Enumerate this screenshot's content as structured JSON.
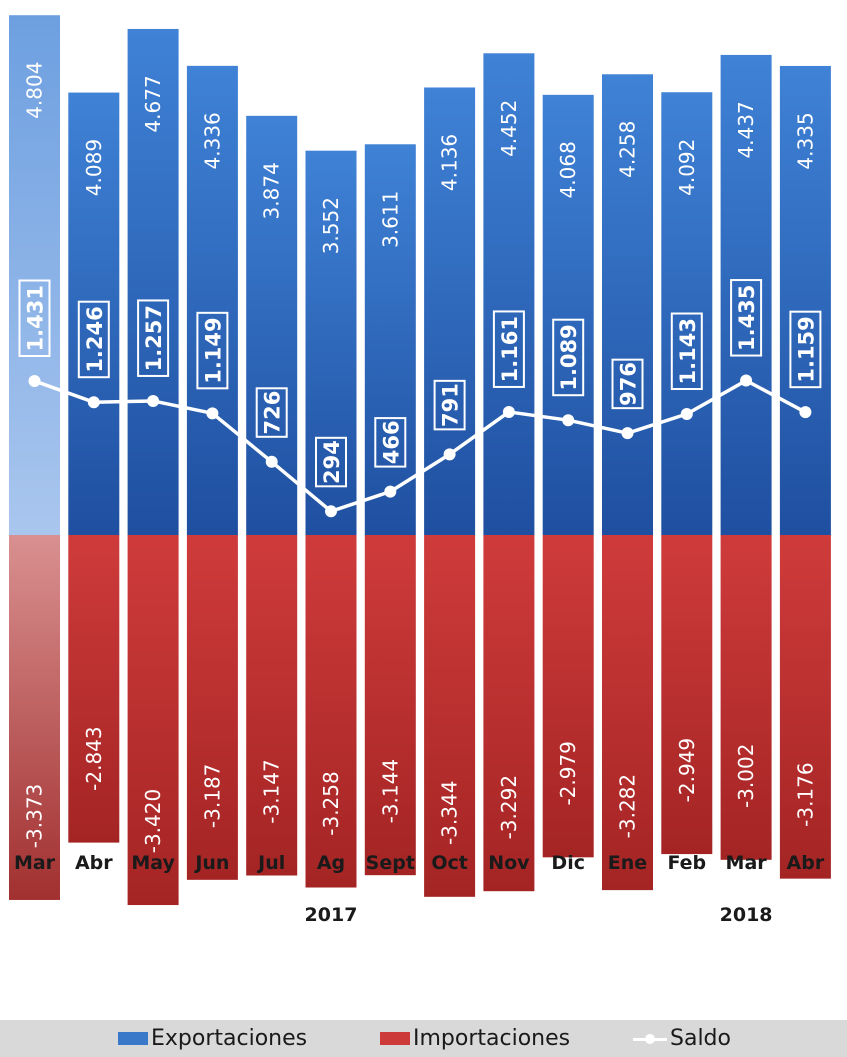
{
  "chart_data": {
    "type": "bar",
    "categories": [
      "Mar",
      "Abr",
      "May",
      "Jun",
      "Jul",
      "Ag",
      "Sept",
      "Oct",
      "Nov",
      "Dic",
      "Ene",
      "Feb",
      "Mar",
      "Abr"
    ],
    "year_labels": [
      {
        "label": "2017",
        "category_index": 5
      },
      {
        "label": "2018",
        "category_index": 12
      }
    ],
    "series": [
      {
        "name": "Exportaciones",
        "type": "bar",
        "color": "#3a78c9",
        "values": [
          4.804,
          4.089,
          4.677,
          4.336,
          3.874,
          3.552,
          3.611,
          4.136,
          4.452,
          4.068,
          4.258,
          4.092,
          4.437,
          4.335
        ],
        "labels": [
          "4.804",
          "4.089",
          "4.677",
          "4.336",
          "3.874",
          "3.552",
          "3.611",
          "4.136",
          "4.452",
          "4.068",
          "4.258",
          "4.092",
          "4.437",
          "4.335"
        ]
      },
      {
        "name": "Importaciones",
        "type": "bar",
        "color": "#cc3a3a",
        "values": [
          -3.373,
          -2.843,
          -3.42,
          -3.187,
          -3.147,
          -3.258,
          -3.144,
          -3.344,
          -3.292,
          -2.979,
          -3.282,
          -2.949,
          -3.002,
          -3.176
        ],
        "labels": [
          "-3.373",
          "-2.843",
          "-3.420",
          "-3.187",
          "-3.147",
          "-3.258",
          "-3.144",
          "-3.344",
          "-3.292",
          "-2.979",
          "-3.282",
          "-2.949",
          "-3.002",
          "-3.176"
        ]
      },
      {
        "name": "Saldo",
        "type": "line",
        "color": "#ffffff",
        "values": [
          1.431,
          1.246,
          1.257,
          1.149,
          0.726,
          0.294,
          0.466,
          0.791,
          1.161,
          1.089,
          0.976,
          1.143,
          1.435,
          1.159
        ],
        "labels": [
          "1.431",
          "1.246",
          "1.257",
          "1.149",
          "726",
          "294",
          "466",
          "791",
          "1.161",
          "1.089",
          "976",
          "1.143",
          "1.435",
          "1.159"
        ]
      }
    ],
    "highlight_category_index": 0,
    "legend_position": "bottom",
    "grid": false
  },
  "legend": {
    "exports": "Exportaciones",
    "imports": "Importaciones",
    "balance": "Saldo"
  }
}
